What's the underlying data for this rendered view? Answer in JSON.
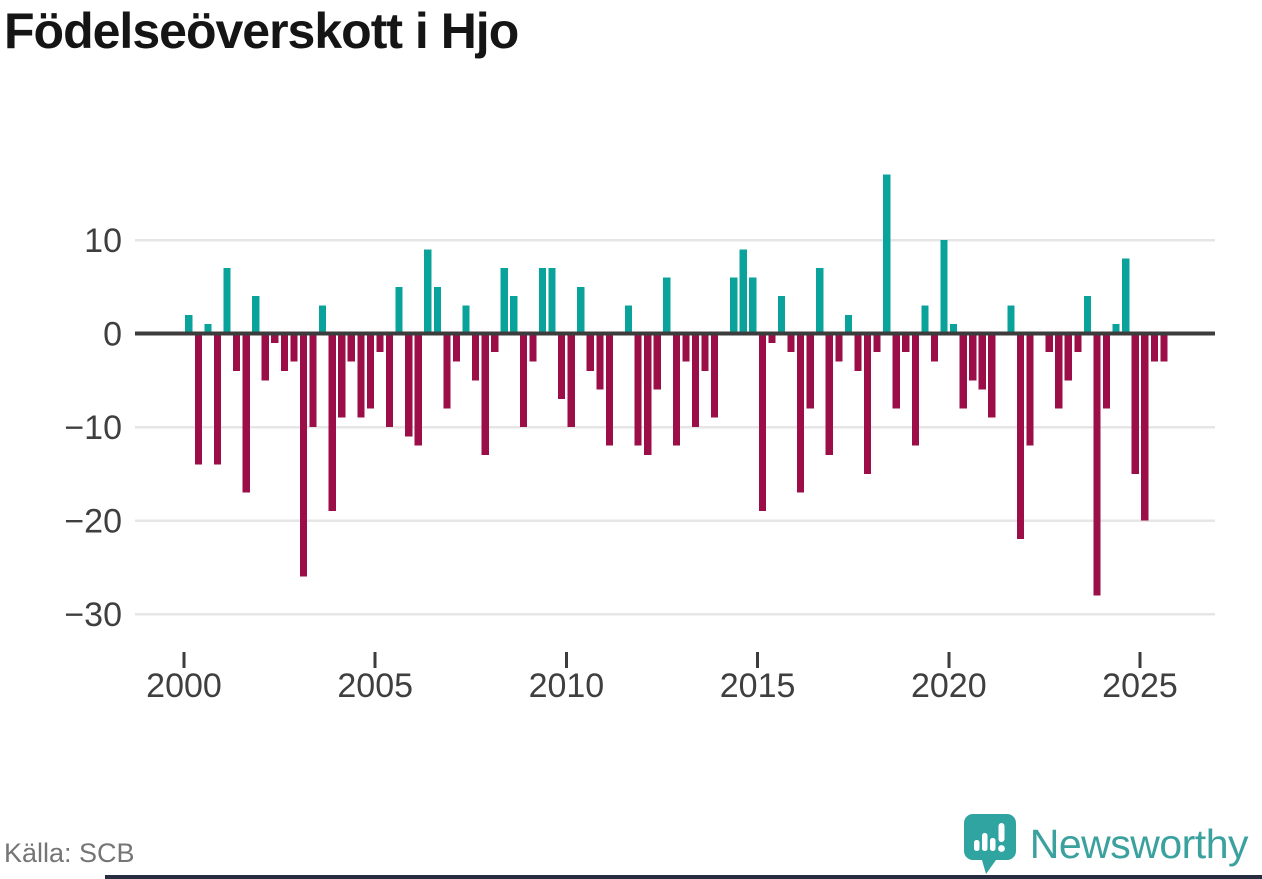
{
  "title": "Födelseöverskott i Hjo",
  "footer": {
    "source": "Källa: SCB",
    "brand_name": "Newsworthy"
  },
  "colors": {
    "positive": "#0aa39b",
    "negative": "#9b0e47",
    "axis": "#3c3c3c",
    "grid": "#e6e6e6",
    "tick_text": "#3f3f3f",
    "title_text": "#151515",
    "muted_text": "#757575",
    "brand_teal": "#3aa19e",
    "logo_fill": "#2fa4a0",
    "bottom_strip": "#272d40"
  },
  "chart_data": {
    "type": "bar",
    "title": "Födelseöverskott i Hjo",
    "periodicity": "quarterly",
    "start_year": 2000,
    "start_quarter": 1,
    "end_year": 2025,
    "end_quarter": 3,
    "values": [
      2,
      -14,
      1,
      -14,
      7,
      -4,
      -17,
      4,
      -5,
      -1,
      -4,
      -3,
      -26,
      -10,
      3,
      -19,
      -9,
      -3,
      -9,
      -8,
      -2,
      -10,
      5,
      -11,
      -12,
      9,
      5,
      -8,
      -3,
      3,
      -5,
      -13,
      -2,
      7,
      4,
      -10,
      -3,
      7,
      7,
      -7,
      -10,
      5,
      -4,
      -6,
      -12,
      0,
      3,
      -12,
      -13,
      -6,
      6,
      -12,
      -3,
      -10,
      -4,
      -9,
      0,
      6,
      9,
      6,
      -19,
      -1,
      4,
      -2,
      -17,
      -8,
      7,
      -13,
      -3,
      2,
      -4,
      -15,
      -2,
      17,
      -8,
      -2,
      -12,
      3,
      -3,
      10,
      1,
      -8,
      -5,
      -6,
      -9,
      0,
      3,
      -22,
      -12,
      0,
      -2,
      -8,
      -5,
      -2,
      4,
      -28,
      -8,
      1,
      8,
      -15,
      -20,
      -3,
      -3
    ],
    "yticks": [
      10,
      0,
      -10,
      -20,
      -30
    ],
    "ytick_labels": [
      "10",
      "0",
      "−10",
      "−20",
      "−30"
    ],
    "xticks": [
      2000,
      2005,
      2010,
      2015,
      2020,
      2025
    ],
    "xtick_labels": [
      "2000",
      "2005",
      "2010",
      "2015",
      "2020",
      "2025"
    ],
    "ylim": [
      -30,
      18
    ],
    "grid": true,
    "legend": false,
    "zero_line": true
  }
}
